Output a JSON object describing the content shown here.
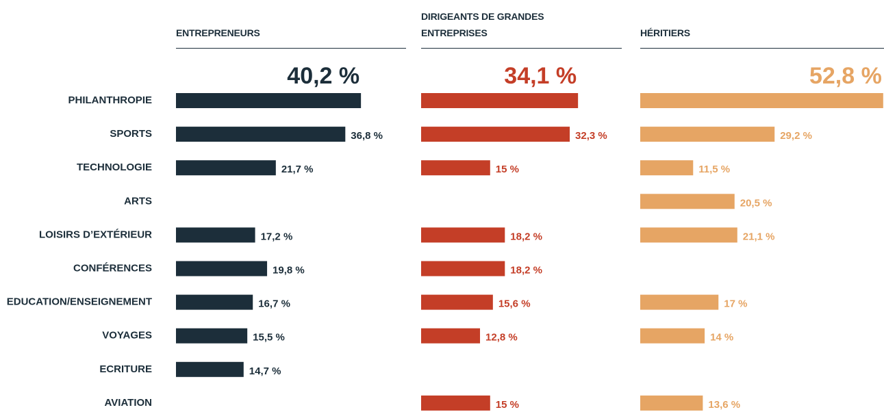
{
  "chart_data": {
    "type": "bar",
    "categories": [
      "PHILANTHROPIE",
      "SPORTS",
      "TECHNOLOGIE",
      "ARTS",
      "LOISIRS D’EXTÉRIEUR",
      "CONFÉRENCES",
      "EDUCATION/ENSEIGNEMENT",
      "VOYAGES",
      "ECRITURE",
      "AVIATION"
    ],
    "series": [
      {
        "name": "ENTREPRENEURS",
        "color": "#1c2e3a",
        "values": [
          40.2,
          36.8,
          21.7,
          null,
          17.2,
          19.8,
          16.7,
          15.5,
          14.7,
          null
        ],
        "value_labels": [
          "40,2 %",
          "36,8 %",
          "21,7 %",
          null,
          "17,2 %",
          "19,8 %",
          "16,7 %",
          "15,5 %",
          "14,7 %",
          null
        ]
      },
      {
        "name": "DIRIGEANTS DE GRANDES ENTREPRISES",
        "color": "#c43e27",
        "values": [
          34.1,
          32.3,
          15,
          null,
          18.2,
          18.2,
          15.6,
          12.8,
          null,
          15
        ],
        "value_labels": [
          "34,1 %",
          "32,3 %",
          "15 %",
          null,
          "18,2 %",
          "18,2 %",
          "15,6 %",
          "12,8 %",
          null,
          "15 %"
        ]
      },
      {
        "name": "HÉRITIERS",
        "color": "#e6a564",
        "values": [
          52.8,
          29.2,
          11.5,
          20.5,
          21.1,
          null,
          17,
          14,
          null,
          13.6
        ],
        "value_labels": [
          "52,8 %",
          "29,2 %",
          "11,5 %",
          "20,5 %",
          "21,1 %",
          null,
          "17 %",
          "14 %",
          null,
          "13,6 %"
        ]
      }
    ]
  }
}
